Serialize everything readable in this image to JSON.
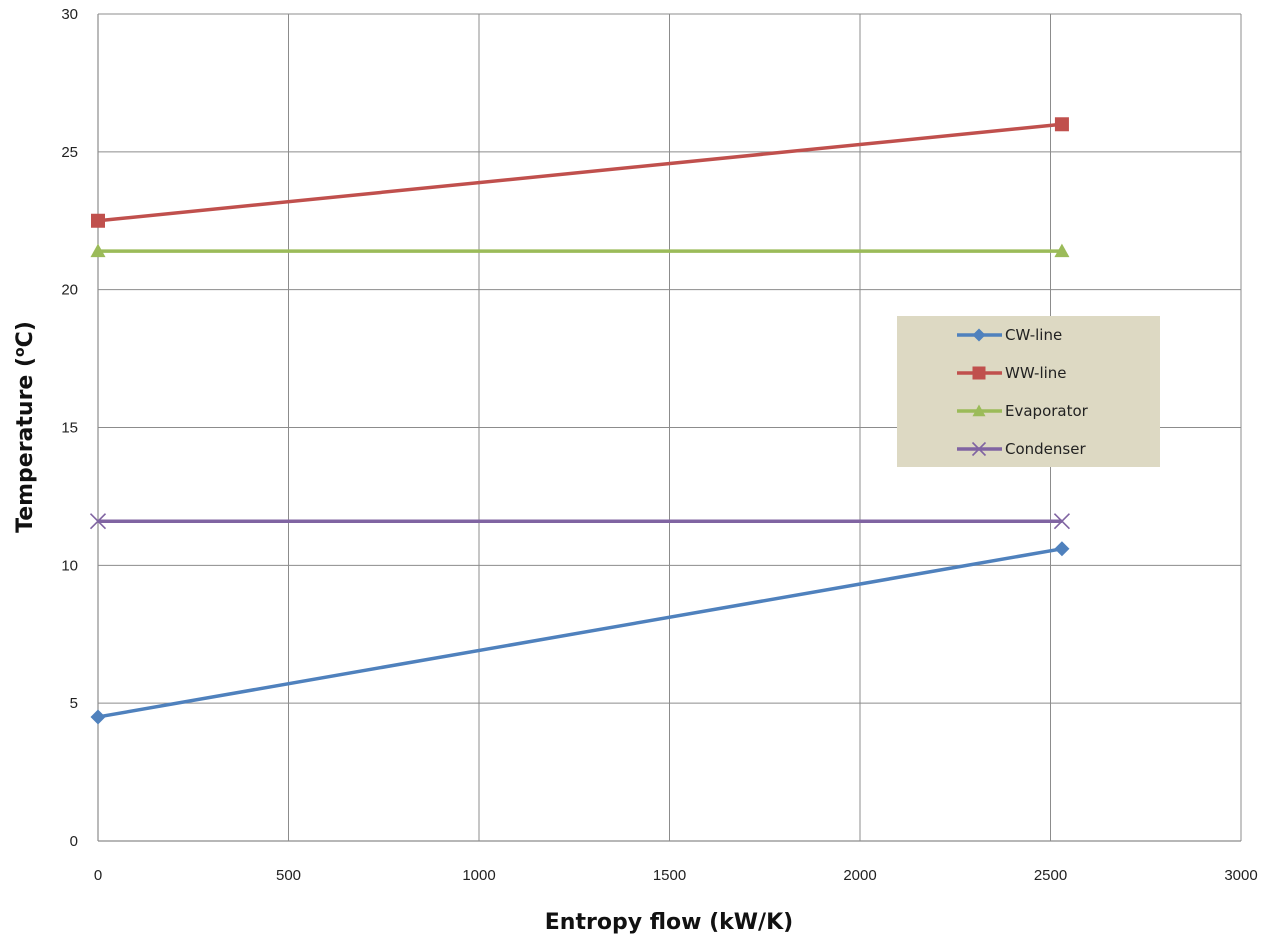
{
  "chart_data": {
    "type": "line",
    "xlabel": "Entropy flow (kW/K)",
    "ylabel": {
      "prefix": "Temperature (",
      "superscript": "o",
      "suffix": "C)"
    },
    "xlim": [
      0,
      3000
    ],
    "ylim": [
      0,
      30
    ],
    "xticks": [
      0,
      500,
      1000,
      1500,
      2000,
      2500,
      3000
    ],
    "yticks": [
      0,
      5,
      10,
      15,
      20,
      25,
      30
    ],
    "grid": true,
    "legend_position": "right",
    "legend_background": "#ddd9c3",
    "series": [
      {
        "name": "CW-line",
        "color": "#4f81bd",
        "marker": "diamond",
        "x": [
          0,
          2530
        ],
        "y": [
          4.5,
          10.6
        ]
      },
      {
        "name": "WW-line",
        "color": "#c0504d",
        "marker": "square",
        "x": [
          0,
          2530
        ],
        "y": [
          22.5,
          26.0
        ]
      },
      {
        "name": "Evaporator",
        "color": "#9bbb59",
        "marker": "triangle",
        "x": [
          0,
          2530
        ],
        "y": [
          21.4,
          21.4
        ]
      },
      {
        "name": "Condenser",
        "color": "#8064a2",
        "marker": "x",
        "x": [
          0,
          2530
        ],
        "y": [
          11.6,
          11.6
        ]
      }
    ]
  }
}
